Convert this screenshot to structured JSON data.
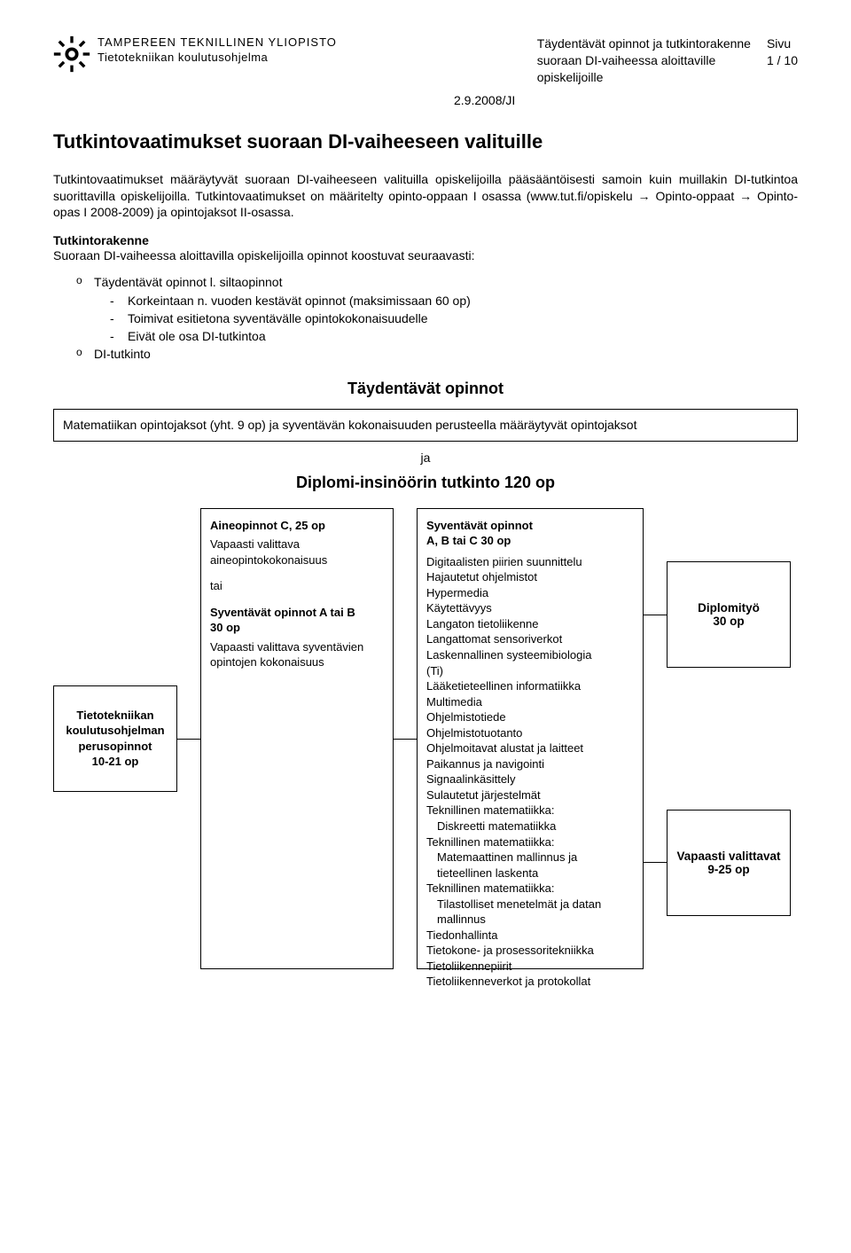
{
  "header": {
    "university": "TAMPEREEN TEKNILLINEN YLIOPISTO",
    "programme": "Tietotekniikan koulutusohjelma",
    "doc_title_l1": "Täydentävät opinnot ja tutkintorakenne",
    "doc_title_l2": "suoraan DI-vaiheessa aloittaville",
    "doc_title_l3": "opiskelijoille",
    "page_label": "Sivu",
    "page_value": "1 / 10",
    "date": "2.9.2008/JI"
  },
  "main_heading": "Tutkintovaatimukset suoraan DI-vaiheeseen valituille",
  "para1": "Tutkintovaatimukset määräytyvät suoraan DI-vaiheeseen valituilla opiskelijoilla pääsääntöisesti samoin kuin muillakin DI-tutkintoa suorittavilla opiskelijoilla. Tutkintovaatimukset on määritelty opinto-oppaan I osassa (www.tut.fi/opiskelu → Opinto-oppaat → Opinto-opas I 2008-2009) ja opintojaksot II-osassa.",
  "sub1": "Tutkintorakenne",
  "para2": "Suoraan DI-vaiheessa aloittavilla opiskelijoilla opinnot koostuvat seuraavasti:",
  "bullets": {
    "b1_main": "Täydentävät opinnot l. siltaopinnot",
    "b1_d1": "Korkeintaan n. vuoden kestävät opinnot (maksimissaan 60 op)",
    "b1_d2": "Toimivat esitietona syventävälle opintokokonaisuudelle",
    "b1_d3": "Eivät ole osa DI-tutkintoa",
    "b2_main": "DI-tutkinto"
  },
  "center_heading": "Täydentävät opinnot",
  "box_text": "Matematiikan opintojaksot (yht. 9 op) ja syventävän kokonaisuuden perusteella määräytyvät opintojaksot",
  "ja": "ja",
  "degree_heading": "Diplomi-insinöörin tutkinto 120 op",
  "diagram": {
    "col1_l1": "Tietotekniikan",
    "col1_l2": "koulutusohjelman",
    "col1_l3": "perusopinnot",
    "col1_l4": "10-21 op",
    "col2": {
      "title1": "Aineopinnot C, 25 op",
      "text1a": "Vapaasti valittava",
      "text1b": "aineopintokokonaisuus",
      "tai": "tai",
      "title2a": "Syventävät opinnot A tai B",
      "title2b": "30 op",
      "text2a": "Vapaasti valittava syventävien",
      "text2b": "opintojen kokonaisuus"
    },
    "col3": {
      "title_l1": "Syventävät opinnot",
      "title_l2": "A, B tai C 30 op",
      "items": [
        "Digitaalisten piirien suunnittelu",
        "Hajautetut ohjelmistot",
        "Hypermedia",
        "Käytettävyys",
        "Langaton tietoliikenne",
        "Langattomat sensoriverkot",
        "Laskennallinen systeemibiologia",
        "(Ti)",
        "Lääketieteellinen informatiikka",
        "Multimedia",
        "Ohjelmistotiede",
        "Ohjelmistotuotanto",
        "Ohjelmoitavat alustat ja laitteet",
        "Paikannus ja navigointi",
        "Signaalinkäsittely",
        "Sulautetut järjestelmät",
        "Teknillinen matematiikka:",
        "  Diskreetti matematiikka",
        "Teknillinen matematiikka:",
        "  Matemaattinen mallinnus ja",
        "  tieteellinen laskenta",
        "Teknillinen matematiikka:",
        "  Tilastolliset menetelmät ja datan",
        "  mallinnus",
        "Tiedonhallinta",
        "Tietokone- ja prosessoritekniikka",
        "Tietoliikennepiirit",
        "Tietoliikenneverkot ja protokollat"
      ]
    },
    "col4a_l1": "Diplomityö",
    "col4a_l2": "30 op",
    "col4b_l1": "Vapaasti valittavat",
    "col4b_l2": "9-25 op"
  }
}
